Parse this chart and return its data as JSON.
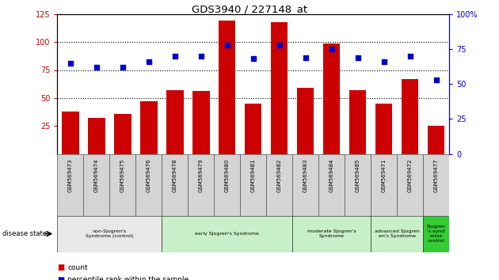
{
  "title": "GDS3940 / 227148_at",
  "samples": [
    "GSM569473",
    "GSM569474",
    "GSM569475",
    "GSM569476",
    "GSM569478",
    "GSM569479",
    "GSM569480",
    "GSM569481",
    "GSM569482",
    "GSM569483",
    "GSM569484",
    "GSM569485",
    "GSM569471",
    "GSM569472",
    "GSM569477"
  ],
  "counts": [
    38,
    32,
    36,
    47,
    57,
    56,
    119,
    45,
    118,
    59,
    99,
    57,
    45,
    67,
    25
  ],
  "percentiles": [
    65,
    62,
    62,
    66,
    70,
    70,
    78,
    68,
    78,
    69,
    75,
    69,
    66,
    70,
    53
  ],
  "bar_color": "#cc0000",
  "dot_color": "#0000cc",
  "ylim_left": [
    0,
    125
  ],
  "ylim_right": [
    0,
    100
  ],
  "yticks_left": [
    25,
    50,
    75,
    100,
    125
  ],
  "yticks_right": [
    0,
    25,
    50,
    75,
    100
  ],
  "groups": [
    {
      "label": "non-Sjogren's\nSyndrome (control)",
      "start": 0,
      "end": 4,
      "color": "#e8e8e8"
    },
    {
      "label": "early Sjogren's Syndrome",
      "start": 4,
      "end": 9,
      "color": "#c8f0c8"
    },
    {
      "label": "moderate Sjogren's\nSyndrome",
      "start": 9,
      "end": 12,
      "color": "#c8f0c8"
    },
    {
      "label": "advanced Sjogren\nen's Syndrome",
      "start": 12,
      "end": 14,
      "color": "#c8f0c8"
    },
    {
      "label": "Sjogren\n's synd\nrome\ncontrol",
      "start": 14,
      "end": 15,
      "color": "#33cc33"
    }
  ],
  "disease_state_label": "disease state",
  "legend_count_label": "count",
  "legend_percentile_label": "percentile rank within the sample",
  "bar_color_red": "#cc0000",
  "dot_color_blue": "#0000cc",
  "tick_color_left": "#cc0000",
  "tick_color_right": "#0000cc"
}
